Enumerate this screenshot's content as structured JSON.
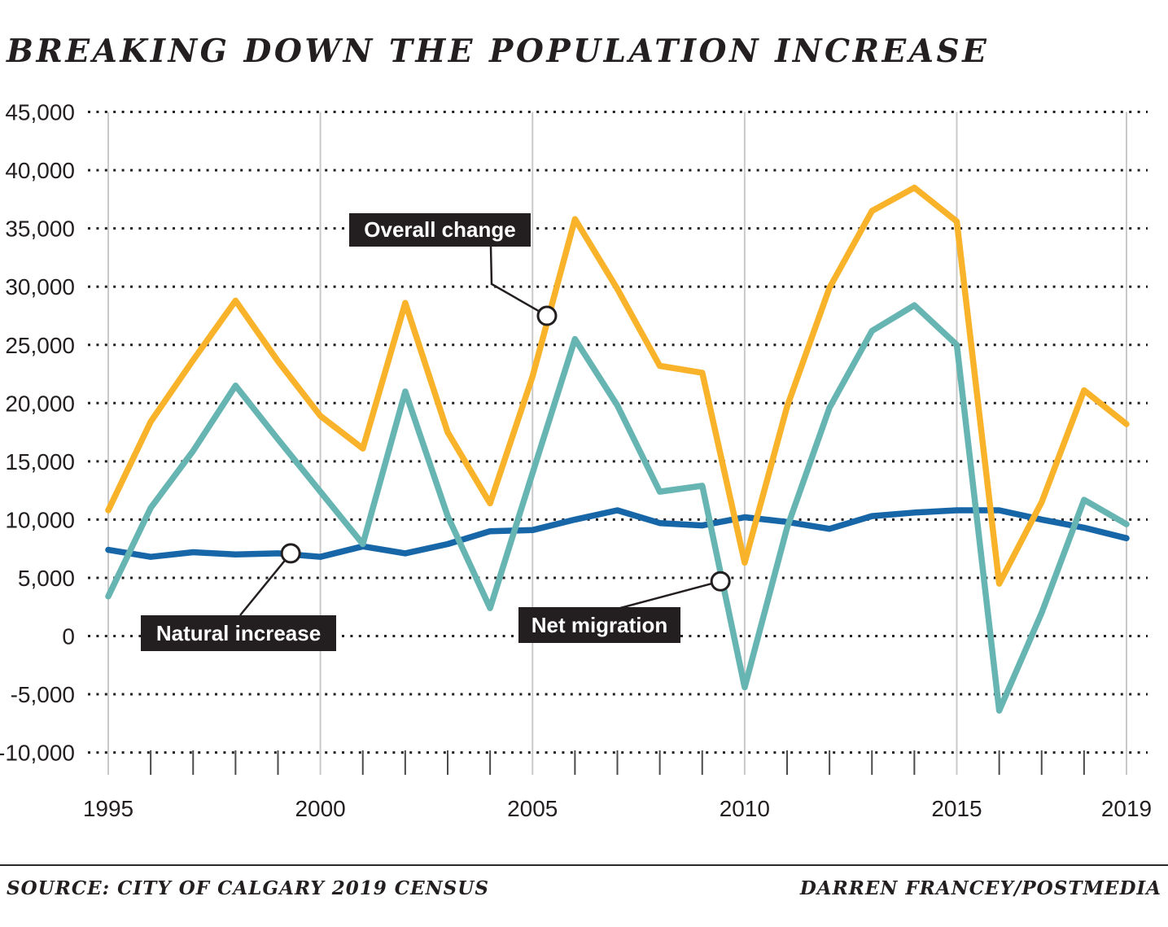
{
  "title": "BREAKING DOWN THE POPULATION INCREASE",
  "footer": {
    "source": "SOURCE: CITY OF CALGARY 2019 CENSUS",
    "credit": "DARREN FRANCEY/POSTMEDIA"
  },
  "colors": {
    "overall_change": "#f9b32b",
    "natural_increase": "#1767a8",
    "net_migration": "#66b5b2",
    "ink": "#231f20",
    "year_line_gray": "#c9c9c9",
    "tick_gray": "#4b4b4b",
    "callout_bg": "#231f20",
    "callout_text": "#ffffff"
  },
  "chart_data": {
    "type": "line",
    "title": "Breaking down the population increase (Calgary)",
    "xlabel": "",
    "ylabel": "",
    "x": [
      1995,
      1996,
      1997,
      1998,
      1999,
      2000,
      2001,
      2002,
      2003,
      2004,
      2005,
      2006,
      2007,
      2008,
      2009,
      2010,
      2011,
      2012,
      2013,
      2014,
      2015,
      2016,
      2017,
      2018,
      2019
    ],
    "series": [
      {
        "name": "Overall change",
        "values": [
          10800,
          18400,
          23700,
          28800,
          23600,
          18900,
          16100,
          28600,
          17500,
          11400,
          22300,
          35800,
          29800,
          23200,
          22600,
          6300,
          19700,
          29900,
          36500,
          38500,
          35600,
          4500,
          11500,
          21100,
          18200
        ]
      },
      {
        "name": "Natural increase",
        "values": [
          7400,
          6800,
          7200,
          7000,
          7100,
          6800,
          7700,
          7100,
          7900,
          9000,
          9100,
          10000,
          10800,
          9700,
          9500,
          10200,
          9800,
          9200,
          10300,
          10600,
          10800,
          10800,
          10000,
          9300,
          8400
        ]
      },
      {
        "name": "Net migration",
        "values": [
          3400,
          11000,
          15900,
          21500,
          16900,
          12400,
          7900,
          21000,
          10300,
          2400,
          14000,
          25500,
          19800,
          12400,
          12900,
          -4400,
          9300,
          19600,
          26200,
          28400,
          25000,
          -6400,
          2000,
          11700,
          9600
        ]
      }
    ],
    "ylim": [
      -10000,
      45000
    ],
    "ytick_step": 5000,
    "ytick_labels": [
      "45,000",
      "40,000",
      "35,000",
      "30,000",
      "25,000",
      "20,000",
      "15,000",
      "10,000",
      "5,000",
      "0",
      "-5,000",
      "-10,000"
    ],
    "xtick_labels": [
      "1995",
      "2000",
      "2005",
      "2010",
      "2015",
      "2019"
    ],
    "xtick_label_years": [
      1995,
      2000,
      2005,
      2010,
      2015,
      2019
    ],
    "grid": "dotted horizontal gridlines; light gray vertical lines at labeled years; legend off",
    "annotations": [
      {
        "label": "Overall change",
        "series": "Overall change",
        "anchor_year": 2005.34,
        "anchor_value": 27500
      },
      {
        "label": "Natural increase",
        "series": "Natural increase",
        "anchor_year": 1999.3,
        "anchor_value": 7100
      },
      {
        "label": "Net migration",
        "series": "Net migration",
        "anchor_year": 2009.43,
        "anchor_value": 4700
      }
    ]
  }
}
